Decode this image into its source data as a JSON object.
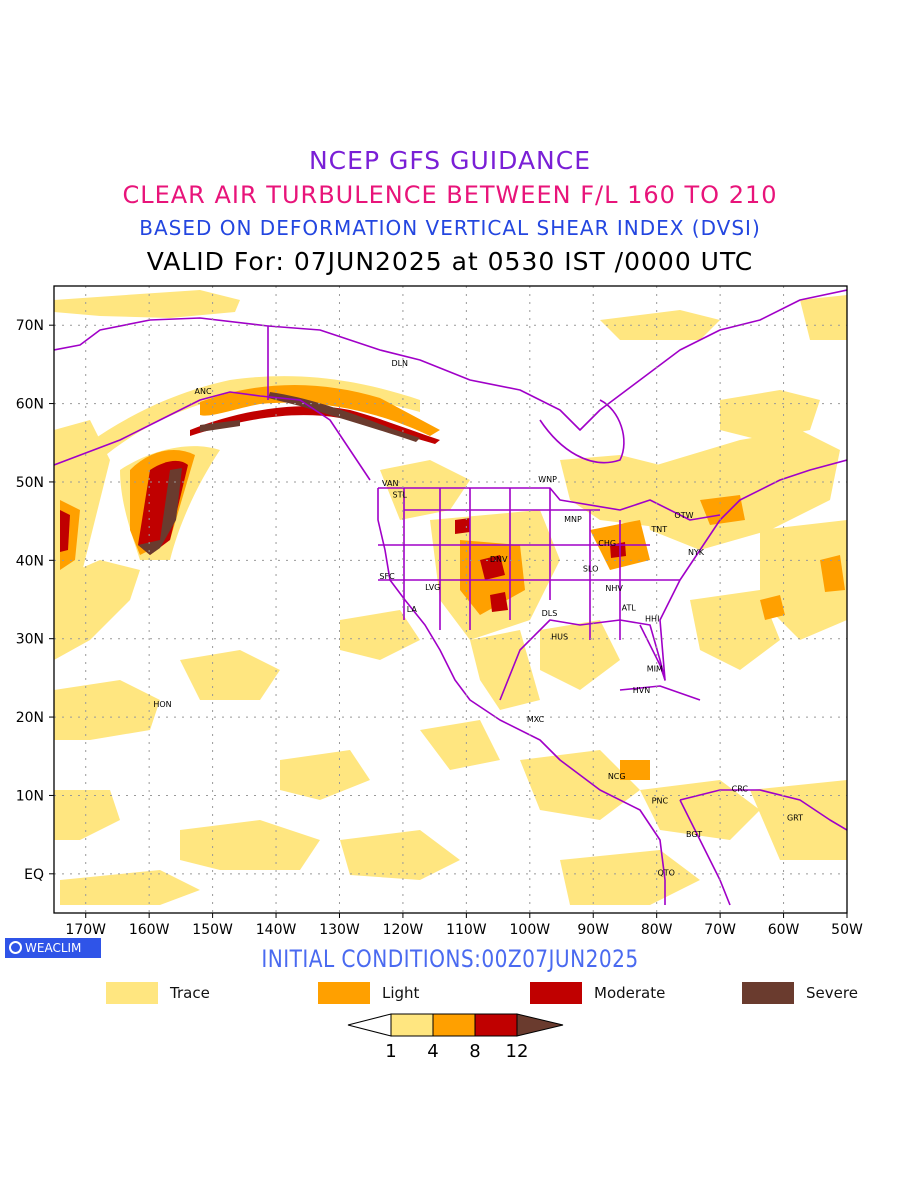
{
  "header": {
    "line1": "NCEP GFS GUIDANCE",
    "line2": "CLEAR AIR TURBULENCE BETWEEN F/L 160 TO 210",
    "line3": "BASED ON DEFORMATION VERTICAL SHEAR INDEX (DVSI)",
    "line4": "VALID For: 07JUN2025 at 0530 IST /0000 UTC"
  },
  "colors": {
    "line1": "#7a1fd6",
    "line2": "#e8147a",
    "line3": "#2346e0",
    "line4": "#000000",
    "border": "#a000c8",
    "trace": "#ffe680",
    "light": "#ffa000",
    "moderate": "#c00000",
    "severe": "#6a3b2e",
    "initial": "#4a6af0"
  },
  "map": {
    "lon_range": [
      -175,
      -50
    ],
    "lat_range": [
      -5,
      75
    ],
    "lon_ticks": [
      "170W",
      "160W",
      "150W",
      "140W",
      "130W",
      "120W",
      "110W",
      "100W",
      "90W",
      "80W",
      "70W",
      "60W",
      "50W"
    ],
    "lat_ticks": [
      "EQ",
      "10N",
      "20N",
      "30N",
      "40N",
      "50N",
      "60N",
      "70N"
    ],
    "stations": [
      {
        "code": "ANC",
        "lon": -151.5,
        "lat": 61.2
      },
      {
        "code": "DLN",
        "lon": -120.5,
        "lat": 64.8
      },
      {
        "code": "VAN",
        "lon": -122.0,
        "lat": 49.5
      },
      {
        "code": "STL",
        "lon": -120.5,
        "lat": 48.0
      },
      {
        "code": "SFC",
        "lon": -122.5,
        "lat": 37.6
      },
      {
        "code": "LVG",
        "lon": -115.3,
        "lat": 36.2
      },
      {
        "code": "LA",
        "lon": -118.6,
        "lat": 33.4
      },
      {
        "code": "DNV",
        "lon": -104.9,
        "lat": 39.8
      },
      {
        "code": "WNP",
        "lon": -97.2,
        "lat": 50.0
      },
      {
        "code": "MNP",
        "lon": -93.2,
        "lat": 44.9
      },
      {
        "code": "CHG",
        "lon": -87.8,
        "lat": 41.8
      },
      {
        "code": "SLO",
        "lon": -90.4,
        "lat": 38.6
      },
      {
        "code": "NHV",
        "lon": -86.7,
        "lat": 36.1
      },
      {
        "code": "ATL",
        "lon": -84.4,
        "lat": 33.6
      },
      {
        "code": "DLS",
        "lon": -96.9,
        "lat": 32.9
      },
      {
        "code": "HUS",
        "lon": -95.3,
        "lat": 29.9
      },
      {
        "code": "HHI",
        "lon": -80.7,
        "lat": 32.2
      },
      {
        "code": "TNT",
        "lon": -79.6,
        "lat": 43.6
      },
      {
        "code": "OTW",
        "lon": -75.7,
        "lat": 45.4
      },
      {
        "code": "NYK",
        "lon": -73.8,
        "lat": 40.7
      },
      {
        "code": "MIM",
        "lon": -80.3,
        "lat": 25.8
      },
      {
        "code": "HVN",
        "lon": -82.4,
        "lat": 23.1
      },
      {
        "code": "MXC",
        "lon": -99.1,
        "lat": 19.4
      },
      {
        "code": "HON",
        "lon": -157.9,
        "lat": 21.3
      },
      {
        "code": "NCG",
        "lon": -86.3,
        "lat": 12.1
      },
      {
        "code": "PNC",
        "lon": -79.5,
        "lat": 9.0
      },
      {
        "code": "CRC",
        "lon": -66.9,
        "lat": 10.5
      },
      {
        "code": "GRT",
        "lon": -58.2,
        "lat": 6.8
      },
      {
        "code": "BGT",
        "lon": -74.1,
        "lat": 4.7
      },
      {
        "code": "QTO",
        "lon": -78.5,
        "lat": -0.2
      }
    ]
  },
  "footer": {
    "logo_text": "WEACLIM",
    "initial_conditions": "INITIAL CONDITIONS:00Z07JUN2025"
  },
  "legend": {
    "items": [
      {
        "label": "Trace"
      },
      {
        "label": "Light"
      },
      {
        "label": "Moderate"
      },
      {
        "label": "Severe"
      }
    ],
    "colorbar_ticks": [
      "1",
      "4",
      "8",
      "12"
    ]
  }
}
